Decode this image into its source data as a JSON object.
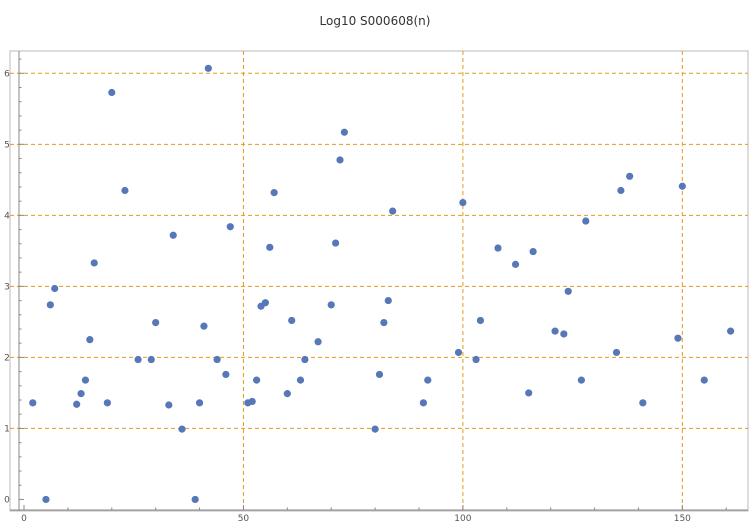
{
  "chart_data": {
    "type": "scatter",
    "title": "Log10 S000608(n)",
    "xlabel": "",
    "ylabel": "",
    "xlim": [
      0,
      162
    ],
    "ylim": [
      -0.05,
      6.3
    ],
    "x_ticks": [
      0,
      50,
      100,
      150
    ],
    "y_ticks": [
      0,
      1,
      2,
      3,
      4,
      5,
      6
    ],
    "x_minor_step": 10,
    "y_minor_step": 0.2,
    "grid": "dashed orange at x = 50, 100, 150 and y = 1 through 6",
    "legend": "none",
    "colors": {
      "point": "#5778b8",
      "grid": "#e39b1a",
      "axis": "#888888",
      "frame": "#bbbbbb"
    },
    "points": [
      {
        "x": 2,
        "y": 1.36
      },
      {
        "x": 5,
        "y": 0.0
      },
      {
        "x": 6,
        "y": 2.74
      },
      {
        "x": 7,
        "y": 2.97
      },
      {
        "x": 12,
        "y": 1.34
      },
      {
        "x": 13,
        "y": 1.49
      },
      {
        "x": 14,
        "y": 1.68
      },
      {
        "x": 15,
        "y": 2.25
      },
      {
        "x": 16,
        "y": 3.33
      },
      {
        "x": 19,
        "y": 1.36
      },
      {
        "x": 20,
        "y": 5.73
      },
      {
        "x": 23,
        "y": 4.35
      },
      {
        "x": 26,
        "y": 1.97
      },
      {
        "x": 29,
        "y": 1.97
      },
      {
        "x": 30,
        "y": 2.49
      },
      {
        "x": 33,
        "y": 1.33
      },
      {
        "x": 34,
        "y": 3.72
      },
      {
        "x": 36,
        "y": 0.99
      },
      {
        "x": 39,
        "y": 0.0
      },
      {
        "x": 40,
        "y": 1.36
      },
      {
        "x": 41,
        "y": 2.44
      },
      {
        "x": 42,
        "y": 6.07
      },
      {
        "x": 44,
        "y": 1.97
      },
      {
        "x": 46,
        "y": 1.76
      },
      {
        "x": 47,
        "y": 3.84
      },
      {
        "x": 51,
        "y": 1.36
      },
      {
        "x": 52,
        "y": 1.38
      },
      {
        "x": 53,
        "y": 1.68
      },
      {
        "x": 54,
        "y": 2.72
      },
      {
        "x": 55,
        "y": 2.77
      },
      {
        "x": 56,
        "y": 3.55
      },
      {
        "x": 57,
        "y": 4.32
      },
      {
        "x": 60,
        "y": 1.49
      },
      {
        "x": 61,
        "y": 2.52
      },
      {
        "x": 63,
        "y": 1.68
      },
      {
        "x": 64,
        "y": 1.97
      },
      {
        "x": 67,
        "y": 2.22
      },
      {
        "x": 70,
        "y": 2.74
      },
      {
        "x": 71,
        "y": 3.61
      },
      {
        "x": 72,
        "y": 4.78
      },
      {
        "x": 73,
        "y": 5.17
      },
      {
        "x": 80,
        "y": 0.99
      },
      {
        "x": 81,
        "y": 1.76
      },
      {
        "x": 82,
        "y": 2.49
      },
      {
        "x": 83,
        "y": 2.8
      },
      {
        "x": 84,
        "y": 4.06
      },
      {
        "x": 91,
        "y": 1.36
      },
      {
        "x": 92,
        "y": 1.68
      },
      {
        "x": 99,
        "y": 2.07
      },
      {
        "x": 100,
        "y": 4.18
      },
      {
        "x": 103,
        "y": 1.97
      },
      {
        "x": 104,
        "y": 2.52
      },
      {
        "x": 108,
        "y": 3.54
      },
      {
        "x": 112,
        "y": 3.31
      },
      {
        "x": 115,
        "y": 1.5
      },
      {
        "x": 116,
        "y": 3.49
      },
      {
        "x": 121,
        "y": 2.37
      },
      {
        "x": 123,
        "y": 2.33
      },
      {
        "x": 124,
        "y": 2.93
      },
      {
        "x": 127,
        "y": 1.68
      },
      {
        "x": 128,
        "y": 3.92
      },
      {
        "x": 135,
        "y": 2.07
      },
      {
        "x": 136,
        "y": 4.35
      },
      {
        "x": 138,
        "y": 4.55
      },
      {
        "x": 141,
        "y": 1.36
      },
      {
        "x": 149,
        "y": 2.27
      },
      {
        "x": 150,
        "y": 4.41
      },
      {
        "x": 155,
        "y": 1.68
      },
      {
        "x": 161,
        "y": 2.37
      }
    ]
  }
}
